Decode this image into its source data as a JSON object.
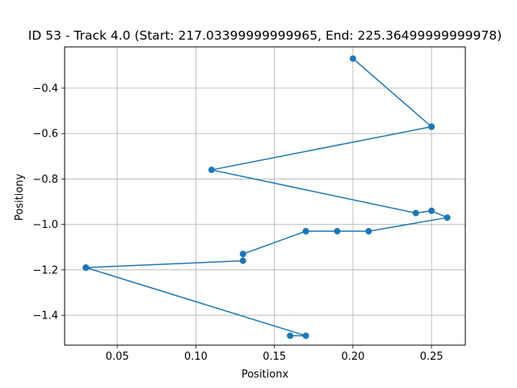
{
  "chart_data": {
    "type": "line",
    "title": "ID 53 - Track 4.0 (Start: 217.03399999999965, End: 225.36499999999978)",
    "xlabel": "Positionx",
    "ylabel": "Positiony",
    "xlim": [
      0.0165,
      0.2715
    ],
    "ylim": [
      -1.5315,
      -0.2185
    ],
    "grid": true,
    "x_ticks": [
      {
        "value": 0.05,
        "label": "0.05"
      },
      {
        "value": 0.1,
        "label": "0.10"
      },
      {
        "value": 0.15,
        "label": "0.15"
      },
      {
        "value": 0.2,
        "label": "0.20"
      },
      {
        "value": 0.25,
        "label": "0.25"
      }
    ],
    "y_ticks": [
      {
        "value": -0.4,
        "label": "−0.4"
      },
      {
        "value": -0.6,
        "label": "−0.6"
      },
      {
        "value": -0.8,
        "label": "−0.8"
      },
      {
        "value": -1.0,
        "label": "−1.0"
      },
      {
        "value": -1.2,
        "label": "−1.2"
      },
      {
        "value": -1.4,
        "label": "−1.4"
      }
    ],
    "series": [
      {
        "color": "#1f77b4",
        "marker": "circle",
        "x": [
          0.2,
          0.25,
          0.25,
          0.11,
          0.24,
          0.25,
          0.26,
          0.21,
          0.19,
          0.17,
          0.17,
          0.13,
          0.13,
          0.03,
          0.03,
          0.17,
          0.16
        ],
        "y": [
          -0.27,
          -0.57,
          -0.57,
          -0.76,
          -0.95,
          -0.94,
          -0.97,
          -1.03,
          -1.03,
          -1.03,
          -1.03,
          -1.13,
          -1.16,
          -1.19,
          -1.19,
          -1.49,
          -1.49
        ]
      }
    ]
  }
}
